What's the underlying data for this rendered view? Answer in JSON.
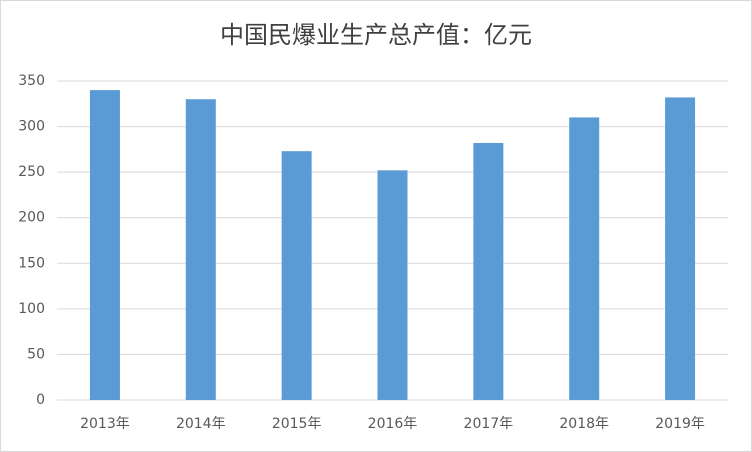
{
  "chart_data": {
    "type": "bar",
    "title": "中国民爆业生产总产值：亿元",
    "categories": [
      "2013年",
      "2014年",
      "2015年",
      "2016年",
      "2017年",
      "2018年",
      "2019年"
    ],
    "values": [
      340,
      330,
      273,
      252,
      282,
      310,
      332
    ],
    "color": "#5b9bd5",
    "ylim": [
      0,
      350
    ],
    "yticks": [
      0,
      50,
      100,
      150,
      200,
      250,
      300,
      350
    ],
    "grid": true
  }
}
